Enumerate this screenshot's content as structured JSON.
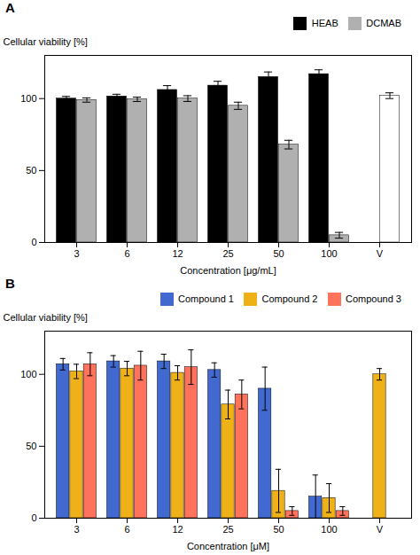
{
  "chart_data": [
    {
      "type": "bar",
      "title": "A",
      "categories": [
        "3",
        "6",
        "12",
        "25",
        "50",
        "100",
        "V"
      ],
      "series": [
        {
          "name": "HEAB",
          "color": "#000000",
          "values": [
            100,
            101.5,
            106,
            109,
            115,
            117,
            null
          ],
          "errors": [
            1.5,
            1.5,
            3,
            3,
            3.5,
            3,
            null
          ]
        },
        {
          "name": "DCMAB",
          "colors": [
            "#b0b0b0",
            "#b0b0b0",
            "#b0b0b0",
            "#b0b0b0",
            "#b0b0b0",
            "#b0b0b0",
            "white"
          ],
          "values": [
            99,
            99.5,
            100,
            95,
            68,
            5,
            102
          ],
          "errors": [
            1.5,
            1.5,
            2,
            2.5,
            3,
            2,
            2
          ]
        }
      ],
      "xlabel": "Concentration [μg/mL]",
      "ylabel": "Cellular viability [%]",
      "ylim": [
        0,
        130
      ],
      "yticks": [
        0,
        50,
        100
      ],
      "legend": "upper right"
    },
    {
      "type": "bar",
      "title": "B",
      "categories": [
        "3",
        "6",
        "12",
        "25",
        "50",
        "100",
        "V"
      ],
      "series": [
        {
          "name": "Compound 1",
          "values": [
            107,
            109,
            109,
            103,
            90,
            15,
            null
          ],
          "errors": [
            4,
            4,
            5,
            5,
            15,
            15,
            null
          ]
        },
        {
          "name": "Compound 2",
          "values": [
            102,
            104,
            101,
            79,
            19,
            14,
            100
          ],
          "errors": [
            5,
            5,
            5,
            10,
            15,
            10,
            4
          ]
        },
        {
          "name": "Compound 3",
          "values": [
            107,
            106,
            105,
            86,
            5,
            5,
            null
          ],
          "errors": [
            8,
            10,
            12,
            10,
            3,
            3,
            null
          ]
        }
      ],
      "xlabel": "Concentration [μM]",
      "ylabel": "Cellular viability [%]",
      "ylim": [
        0,
        130
      ],
      "yticks": [
        0,
        50,
        100
      ],
      "legend": "upper right"
    }
  ]
}
